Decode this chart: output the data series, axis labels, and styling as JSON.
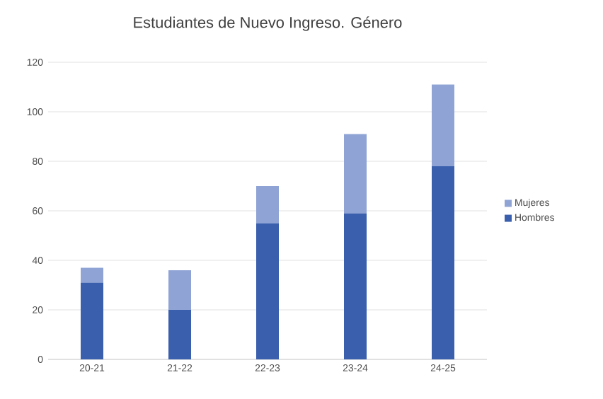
{
  "chart_data": {
    "type": "bar",
    "title": "Estudiantes de Nuevo Ingreso. Género",
    "stacked": true,
    "categories": [
      "20-21",
      "21-22",
      "22-23",
      "23-24",
      "24-25"
    ],
    "series": [
      {
        "name": "Hombres",
        "color": "#3a5fad",
        "values": [
          31,
          20,
          55,
          59,
          78
        ]
      },
      {
        "name": "Mujeres",
        "color": "#8fa4d5",
        "values": [
          6,
          16,
          15,
          32,
          33
        ]
      }
    ],
    "ylim": [
      0,
      120
    ],
    "yticks": [
      0,
      20,
      40,
      60,
      80,
      100,
      120
    ],
    "grid": "y",
    "legend": "right"
  }
}
